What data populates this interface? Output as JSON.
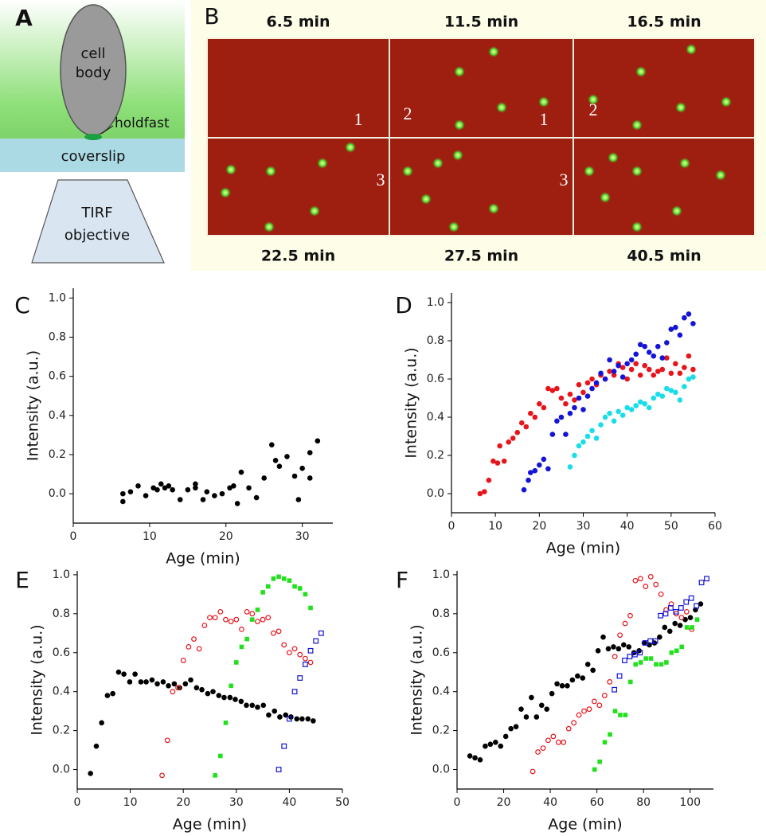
{
  "panel_a": {
    "label": "A",
    "cell_body": [
      "cell",
      "body"
    ],
    "holdfast": "holdfast",
    "coverslip": "coverslip",
    "objective": [
      "TIRF",
      "objective"
    ]
  },
  "panel_b": {
    "label": "B",
    "frames": [
      {
        "time": "6.5 min",
        "marks": [
          "1"
        ]
      },
      {
        "time": "11.5 min",
        "marks": [
          "2",
          "1"
        ]
      },
      {
        "time": "16.5 min",
        "marks": [
          "2"
        ]
      },
      {
        "time": "22.5 min",
        "marks": [
          "3"
        ]
      },
      {
        "time": "27.5 min",
        "marks": [
          "3"
        ]
      },
      {
        "time": "40.5 min",
        "marks": []
      }
    ]
  },
  "chart_data": [
    {
      "type": "scatter",
      "panel": "C",
      "x_label": "Age (min)",
      "y_label": "Intensity (a.u.)",
      "xlim": [
        0,
        34
      ],
      "xticks": [
        0,
        10,
        20,
        30
      ],
      "ylim": [
        -0.15,
        1.05
      ],
      "yticks": [
        {
          "value": 0,
          "label": "0.0"
        },
        0.2,
        0.4,
        0.6,
        0.8,
        {
          "value": 1,
          "label": "1.0"
        }
      ],
      "series": [
        {
          "color": "#000000",
          "marker": "circle",
          "x": [
            6.5,
            6.5,
            7.5,
            8.5,
            9.5,
            10.5,
            11,
            11.5,
            12,
            12.5,
            13,
            14,
            15,
            16,
            16,
            17,
            17.5,
            18.5,
            19.5,
            20.5,
            21,
            21.5,
            22,
            23,
            24,
            25,
            26,
            26.5,
            27,
            28,
            29,
            29.5,
            30,
            31,
            31,
            32
          ],
          "values": [
            0,
            -0.04,
            0.01,
            0.04,
            -0.01,
            0.03,
            0.02,
            0.05,
            0.03,
            0.04,
            0.02,
            -0.03,
            0.02,
            0.05,
            0.03,
            -0.03,
            0.01,
            -0.01,
            0,
            0.03,
            0.04,
            -0.05,
            0.11,
            0.03,
            -0.02,
            0.08,
            0.25,
            0.17,
            0.14,
            0.19,
            0.09,
            -0.03,
            0.13,
            0.21,
            0.08,
            0.27
          ]
        }
      ]
    },
    {
      "type": "scatter",
      "panel": "D",
      "x_label": "Age (min)",
      "y_label": "Intensity (a.u.)",
      "xlim": [
        0,
        60
      ],
      "xticks": [
        0,
        10,
        20,
        30,
        40,
        50,
        60
      ],
      "ylim": [
        -0.1,
        1.05
      ],
      "yticks": [
        {
          "value": 0,
          "label": "0.0"
        },
        0.2,
        0.4,
        0.6,
        0.8,
        {
          "value": 1,
          "label": "1.0"
        }
      ],
      "series": [
        {
          "color": "#e8141b",
          "marker": "circle",
          "x": [
            6.5,
            7.5,
            8.5,
            9.5,
            10.5,
            11,
            12,
            13,
            14,
            15,
            16,
            17,
            18,
            19,
            20,
            21,
            22,
            23,
            24,
            25,
            26,
            27,
            28,
            29,
            30,
            31,
            32,
            33,
            34,
            35,
            36,
            37,
            38,
            39,
            40,
            41,
            42,
            43,
            44,
            45,
            46,
            47,
            48,
            49,
            50,
            51,
            52,
            53,
            54,
            55
          ],
          "values": [
            0,
            0.01,
            0.07,
            0.17,
            0.16,
            0.25,
            0.17,
            0.27,
            0.29,
            0.32,
            0.37,
            0.35,
            0.42,
            0.4,
            0.47,
            0.45,
            0.55,
            0.54,
            0.55,
            0.5,
            0.47,
            0.52,
            0.49,
            0.57,
            0.53,
            0.58,
            0.6,
            0.57,
            0.62,
            0.6,
            0.64,
            0.62,
            0.68,
            0.66,
            0.6,
            0.65,
            0.68,
            0.62,
            0.67,
            0.65,
            0.62,
            0.64,
            0.65,
            0.71,
            0.63,
            0.68,
            0.63,
            0.66,
            0.72,
            0.65
          ]
        },
        {
          "color": "#1414d8",
          "marker": "circle",
          "x": [
            16.5,
            17.5,
            18,
            19,
            20,
            21,
            22,
            23,
            24,
            25,
            26,
            27,
            28,
            29,
            30,
            31,
            32,
            33,
            34,
            35,
            36,
            37,
            38,
            39,
            40,
            41,
            42,
            43,
            44,
            45,
            46,
            47,
            48,
            49,
            50,
            51,
            52,
            53,
            54,
            55
          ],
          "values": [
            0.02,
            0.07,
            0.11,
            0.12,
            0.15,
            0.18,
            0.13,
            0.31,
            0.38,
            0.4,
            0.31,
            0.42,
            0.45,
            0.5,
            0.44,
            0.51,
            0.55,
            0.58,
            0.63,
            0.6,
            0.7,
            0.64,
            0.67,
            0.61,
            0.68,
            0.7,
            0.73,
            0.78,
            0.77,
            0.74,
            0.72,
            0.77,
            0.71,
            0.79,
            0.86,
            0.87,
            0.83,
            0.92,
            0.94,
            0.89
          ]
        },
        {
          "color": "#19dde8",
          "marker": "circle",
          "x": [
            27,
            28,
            29,
            30,
            31,
            32,
            33,
            34,
            35,
            36,
            37,
            38,
            39,
            40,
            41,
            42,
            43,
            44,
            45,
            46,
            47,
            48,
            49,
            50,
            51,
            52,
            53,
            54,
            55
          ],
          "values": [
            0.14,
            0.2,
            0.25,
            0.27,
            0.3,
            0.33,
            0.29,
            0.36,
            0.4,
            0.42,
            0.38,
            0.43,
            0.41,
            0.45,
            0.44,
            0.46,
            0.48,
            0.47,
            0.45,
            0.5,
            0.52,
            0.51,
            0.55,
            0.54,
            0.53,
            0.49,
            0.56,
            0.6,
            0.61
          ]
        }
      ]
    },
    {
      "type": "scatter",
      "panel": "E",
      "x_label": "Age (min)",
      "y_label": "Intensity (a.u.)",
      "xlim": [
        0,
        50
      ],
      "xticks": [
        0,
        10,
        20,
        30,
        40,
        50
      ],
      "ylim": [
        -0.1,
        1.02
      ],
      "yticks": [
        {
          "value": 0,
          "label": "0.0"
        },
        0.2,
        0.4,
        0.6,
        0.8,
        {
          "value": 1,
          "label": "1.0"
        }
      ],
      "series": [
        {
          "color": "#000000",
          "marker": "circle",
          "x": [
            2.5,
            3.6,
            4.6,
            5.7,
            6.7,
            7.8,
            8.8,
            9.9,
            10.9,
            12.0,
            13.0,
            14.1,
            15.1,
            16.2,
            17.2,
            18.3,
            19.3,
            20.4,
            21.4,
            22.5,
            23.5,
            24.6,
            25.6,
            26.7,
            27.7,
            28.8,
            29.8,
            30.9,
            31.9,
            33.0,
            34.0,
            35.1,
            36.1,
            37.2,
            38.2,
            39.3,
            40.3,
            41.4,
            42.4,
            43.5,
            44.5
          ],
          "values": [
            -0.02,
            0.12,
            0.24,
            0.38,
            0.39,
            0.5,
            0.49,
            0.45,
            0.49,
            0.45,
            0.45,
            0.46,
            0.44,
            0.45,
            0.43,
            0.44,
            0.42,
            0.44,
            0.46,
            0.42,
            0.41,
            0.39,
            0.4,
            0.38,
            0.37,
            0.37,
            0.36,
            0.35,
            0.33,
            0.33,
            0.32,
            0.33,
            0.28,
            0.3,
            0.27,
            0.28,
            0.27,
            0.26,
            0.26,
            0.26,
            0.25
          ]
        },
        {
          "color": "#e8141b",
          "marker": "circle-open",
          "x": [
            16,
            17,
            18,
            19,
            20,
            21,
            22,
            23,
            24,
            25,
            26,
            27,
            28,
            29,
            30,
            31,
            32,
            33,
            34,
            35,
            36,
            37,
            38,
            39,
            40,
            41,
            42,
            43,
            44
          ],
          "values": [
            -0.03,
            0.15,
            0.4,
            0.42,
            0.56,
            0.63,
            0.67,
            0.62,
            0.74,
            0.78,
            0.78,
            0.81,
            0.77,
            0.76,
            0.77,
            0.72,
            0.81,
            0.8,
            0.76,
            0.77,
            0.78,
            0.7,
            0.71,
            0.64,
            0.6,
            0.62,
            0.59,
            0.57,
            0.55
          ]
        },
        {
          "color": "#22e01e",
          "marker": "square",
          "x": [
            26,
            27,
            28,
            29,
            30,
            31,
            32,
            33,
            34,
            35,
            36,
            37,
            38,
            39,
            40,
            41,
            42,
            43,
            44
          ],
          "values": [
            -0.03,
            0.07,
            0.24,
            0.43,
            0.55,
            0.63,
            0.67,
            0.77,
            0.82,
            0.91,
            0.94,
            0.98,
            0.99,
            0.98,
            0.97,
            0.94,
            0.93,
            0.9,
            0.83
          ]
        },
        {
          "color": "#1414d8",
          "marker": "square-open",
          "x": [
            38,
            39,
            40,
            41,
            42,
            43,
            44,
            45,
            46
          ],
          "values": [
            0,
            0.12,
            0.26,
            0.4,
            0.47,
            0.54,
            0.61,
            0.66,
            0.7
          ]
        }
      ]
    },
    {
      "type": "scatter",
      "panel": "F",
      "x_label": "Age (min)",
      "y_label": "Intensity (a.u.)",
      "xlim": [
        0,
        110
      ],
      "xticks": [
        0,
        20,
        40,
        60,
        80,
        100
      ],
      "ylim": [
        -0.1,
        1.02
      ],
      "yticks": [
        {
          "value": 0,
          "label": "0.0"
        },
        0.2,
        0.4,
        0.6,
        0.8,
        {
          "value": 1,
          "label": "1.0"
        }
      ],
      "series": [
        {
          "color": "#000000",
          "marker": "circle",
          "x": [
            5.5,
            7.7,
            9.9,
            12.1,
            14.3,
            16.5,
            18.7,
            20.9,
            23.1,
            25.3,
            27.5,
            29.7,
            31.9,
            34.1,
            36.3,
            38.5,
            40.7,
            42.9,
            45.1,
            47.3,
            49.5,
            51.7,
            53.9,
            56.1,
            58.3,
            60.5,
            62.7,
            64.9,
            67.1,
            69.3,
            71.5,
            73.7,
            75.9,
            78.1,
            80.3,
            82.5,
            84.7,
            86.9,
            89.1,
            91.3,
            93.5,
            95.7,
            97.9,
            100.1,
            102.3,
            104.5
          ],
          "values": [
            0.07,
            0.06,
            0.05,
            0.12,
            0.13,
            0.14,
            0.12,
            0.17,
            0.21,
            0.22,
            0.31,
            0.27,
            0.37,
            0.27,
            0.33,
            0.31,
            0.39,
            0.44,
            0.43,
            0.43,
            0.46,
            0.48,
            0.47,
            0.54,
            0.51,
            0.61,
            0.68,
            0.62,
            0.63,
            0.62,
            0.64,
            0.63,
            0.6,
            0.61,
            0.65,
            0.64,
            0.65,
            0.68,
            0.73,
            0.71,
            0.75,
            0.74,
            0.77,
            0.78,
            0.82,
            0.85
          ]
        },
        {
          "color": "#e8141b",
          "marker": "circle-open",
          "x": [
            32.5,
            34.7,
            36.9,
            39.1,
            41.3,
            43.5,
            45.7,
            47.9,
            50.1,
            52.3,
            54.5,
            56.7,
            58.9,
            61.1,
            63.3,
            65.5,
            67.7,
            69.9,
            72.1,
            74.3,
            76.5,
            78.7,
            80.9,
            83.1,
            85.3,
            87.5,
            89.7,
            91.9,
            94.1,
            96.3,
            98.5,
            100.7
          ],
          "values": [
            -0.01,
            0.09,
            0.11,
            0.15,
            0.17,
            0.14,
            0.14,
            0.21,
            0.24,
            0.28,
            0.3,
            0.31,
            0.35,
            0.33,
            0.38,
            0.45,
            0.58,
            0.69,
            0.75,
            0.79,
            0.97,
            0.98,
            0.94,
            0.99,
            0.95,
            0.9,
            0.82,
            0.85,
            0.8,
            0.78,
            0.81,
            0.72
          ]
        },
        {
          "color": "#22e01e",
          "marker": "square",
          "x": [
            59,
            61.2,
            63.4,
            65.6,
            67.8,
            70,
            72.2,
            74.4,
            76.6,
            78.8,
            81,
            83.2,
            85.4,
            87.6,
            89.8,
            92,
            94.2,
            96.4,
            98.6,
            100.8,
            103
          ],
          "values": [
            0,
            0.04,
            0.14,
            0.18,
            0.3,
            0.28,
            0.28,
            0.45,
            0.54,
            0.55,
            0.57,
            0.57,
            0.54,
            0.54,
            0.55,
            0.6,
            0.61,
            0.63,
            0.73,
            0.73,
            0.77
          ]
        },
        {
          "color": "#1414d8",
          "marker": "square-open",
          "x": [
            67.5,
            69.7,
            71.9,
            74.1,
            76.3,
            78.5,
            80.7,
            82.9,
            85.1,
            87.3,
            89.5,
            91.7,
            93.9,
            96.1,
            98.3,
            100.5,
            102.7,
            104.9,
            107.1
          ],
          "values": [
            0.41,
            0.48,
            0.56,
            0.58,
            0.59,
            0.6,
            0.65,
            0.66,
            0.66,
            0.79,
            0.8,
            0.83,
            0.81,
            0.83,
            0.86,
            0.88,
            0.84,
            0.96,
            0.98
          ]
        }
      ]
    }
  ]
}
